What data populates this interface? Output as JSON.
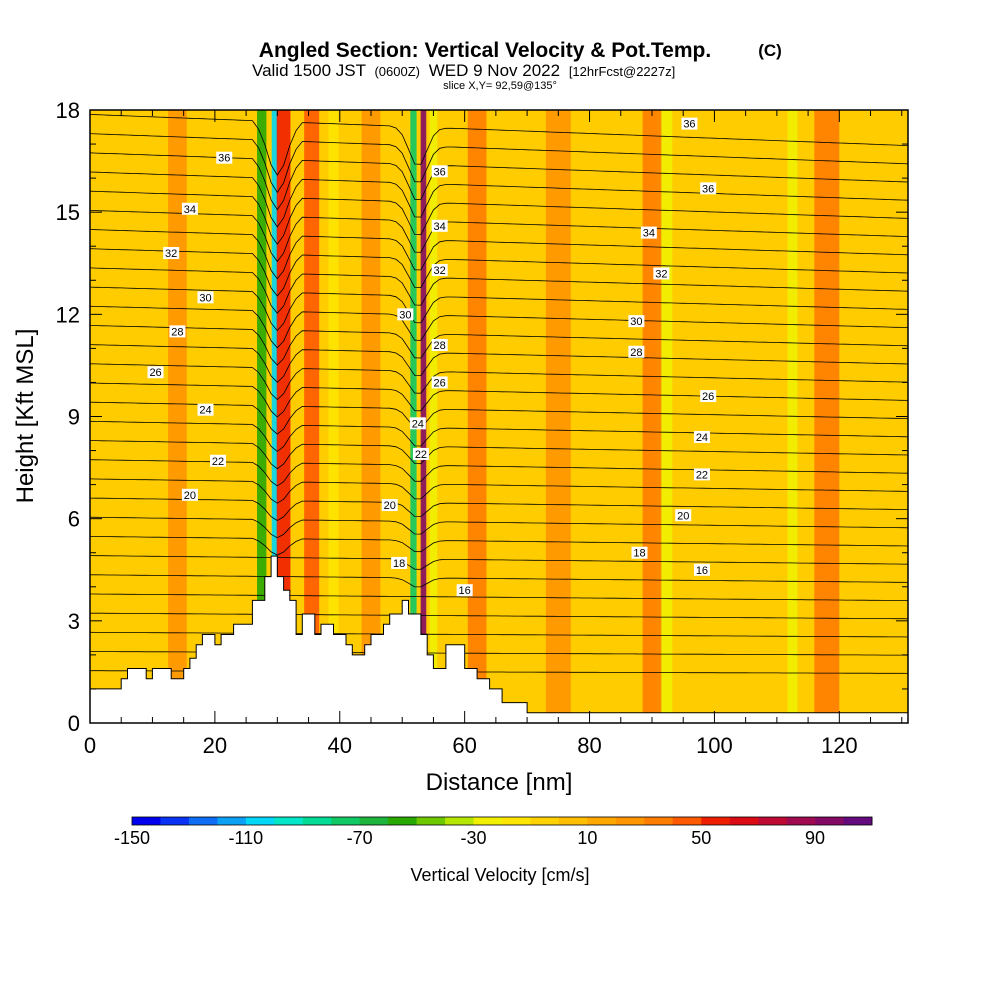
{
  "header": {
    "title": "Angled Section: Vertical Velocity & Pot.Temp.",
    "copyright": "(C)",
    "valid_prefix": "Valid 1500 JST",
    "valid_utc": "(0600Z)",
    "valid_date": "WED 9 Nov 2022",
    "forecast": "[12hrFcst@2227z]",
    "slice": "slice X,Y= 92,59@135°"
  },
  "chart_data": {
    "type": "heatmap",
    "title": "Angled Section: Vertical Velocity & Pot.Temp.",
    "xlabel": "Distance [nm]",
    "ylabel": "Height [Kft MSL]",
    "xlim": [
      0,
      131
    ],
    "ylim": [
      0,
      18
    ],
    "xticks": [
      0,
      20,
      40,
      60,
      80,
      100,
      120
    ],
    "yticks": [
      0,
      3,
      6,
      9,
      12,
      15,
      18
    ],
    "colorbar": {
      "label": "Vertical Velocity [cm/s]",
      "min": -150,
      "max": 110,
      "step": 10,
      "tick_values": [
        -150,
        -110,
        -70,
        -30,
        10,
        50,
        90
      ],
      "colors": [
        "#0000ee",
        "#0a32f5",
        "#0e6cf5",
        "#0ca0f5",
        "#00d6f5",
        "#00e6c8",
        "#00dc96",
        "#10c864",
        "#1eb43c",
        "#28a800",
        "#6ec800",
        "#b4e600",
        "#f0f000",
        "#ffe600",
        "#ffd200",
        "#ffbe00",
        "#ffa800",
        "#ff9600",
        "#ff7d00",
        "#ff5a00",
        "#f01e00",
        "#dc0a14",
        "#be0a32",
        "#a00a50",
        "#820a64",
        "#640a7d"
      ]
    },
    "velocity_bands": [
      {
        "x": 27.5,
        "w": 1.5,
        "v": -60
      },
      {
        "x": 29.6,
        "w": 1.0,
        "v": -110
      },
      {
        "x": 31.0,
        "w": 2.2,
        "v": 55
      },
      {
        "x": 35.5,
        "w": 2.4,
        "v": 40
      },
      {
        "x": 39.0,
        "w": 1.6,
        "v": -20
      },
      {
        "x": 51.8,
        "w": 1.0,
        "v": -80
      },
      {
        "x": 53.4,
        "w": 0.9,
        "v": 95
      },
      {
        "x": 55.0,
        "w": 1.2,
        "v": -30
      },
      {
        "x": 62.0,
        "w": 3.0,
        "v": 30
      },
      {
        "x": 92.0,
        "w": 2.5,
        "v": -25
      },
      {
        "x": 90.0,
        "w": 3.0,
        "v": 35
      },
      {
        "x": 112.5,
        "w": 1.6,
        "v": -30
      },
      {
        "x": 118.0,
        "w": 4.0,
        "v": 30
      },
      {
        "x": 14.0,
        "w": 3.0,
        "v": 25
      },
      {
        "x": 45.0,
        "w": 3.0,
        "v": 25
      },
      {
        "x": 75.0,
        "w": 4.0,
        "v": 25
      }
    ],
    "terrain": [
      [
        0,
        1
      ],
      [
        5,
        1
      ],
      [
        5,
        1.3
      ],
      [
        6,
        1.3
      ],
      [
        6,
        1.6
      ],
      [
        9,
        1.6
      ],
      [
        9,
        1.3
      ],
      [
        10,
        1.3
      ],
      [
        10,
        1.6
      ],
      [
        13,
        1.6
      ],
      [
        13,
        1.3
      ],
      [
        15,
        1.3
      ],
      [
        15,
        1.6
      ],
      [
        16,
        1.6
      ],
      [
        16,
        1.9
      ],
      [
        17,
        1.9
      ],
      [
        17,
        2.3
      ],
      [
        18,
        2.3
      ],
      [
        18,
        2.6
      ],
      [
        20,
        2.6
      ],
      [
        20,
        2.3
      ],
      [
        21,
        2.3
      ],
      [
        21,
        2.6
      ],
      [
        23,
        2.6
      ],
      [
        23,
        2.9
      ],
      [
        26,
        2.9
      ],
      [
        26,
        3.6
      ],
      [
        28,
        3.6
      ],
      [
        28,
        4.3
      ],
      [
        29,
        4.3
      ],
      [
        29,
        4.9
      ],
      [
        30,
        4.9
      ],
      [
        30,
        4.3
      ],
      [
        31,
        4.3
      ],
      [
        31,
        3.9
      ],
      [
        32,
        3.9
      ],
      [
        32,
        3.6
      ],
      [
        33,
        3.6
      ],
      [
        33,
        2.6
      ],
      [
        34,
        2.6
      ],
      [
        34,
        3.2
      ],
      [
        36,
        3.2
      ],
      [
        36,
        2.6
      ],
      [
        37,
        2.6
      ],
      [
        37,
        2.9
      ],
      [
        39,
        2.9
      ],
      [
        39,
        2.6
      ],
      [
        41,
        2.6
      ],
      [
        41,
        2.3
      ],
      [
        42,
        2.3
      ],
      [
        42,
        2.0
      ],
      [
        44,
        2.0
      ],
      [
        44,
        2.3
      ],
      [
        45,
        2.3
      ],
      [
        45,
        2.6
      ],
      [
        47,
        2.6
      ],
      [
        47,
        2.9
      ],
      [
        48,
        2.9
      ],
      [
        48,
        3.2
      ],
      [
        50,
        3.2
      ],
      [
        50,
        3.6
      ],
      [
        51,
        3.6
      ],
      [
        51,
        3.2
      ],
      [
        53,
        3.2
      ],
      [
        53,
        2.6
      ],
      [
        54,
        2.6
      ],
      [
        54,
        2.0
      ],
      [
        55,
        2.0
      ],
      [
        55,
        1.6
      ],
      [
        57,
        1.6
      ],
      [
        57,
        2.3
      ],
      [
        60,
        2.3
      ],
      [
        60,
        1.6
      ],
      [
        62,
        1.6
      ],
      [
        62,
        1.3
      ],
      [
        64,
        1.3
      ],
      [
        64,
        1.0
      ],
      [
        66,
        1.0
      ],
      [
        66,
        0.6
      ],
      [
        70,
        0.6
      ],
      [
        70,
        0.3
      ],
      [
        131,
        0.3
      ]
    ],
    "theta_labels": [
      {
        "text": "16",
        "x": 60,
        "y": 3.9
      },
      {
        "text": "16",
        "x": 98,
        "y": 4.5
      },
      {
        "text": "18",
        "x": 49.5,
        "y": 4.7
      },
      {
        "text": "18",
        "x": 88,
        "y": 5.0
      },
      {
        "text": "20",
        "x": 16,
        "y": 6.7
      },
      {
        "text": "20",
        "x": 48,
        "y": 6.4
      },
      {
        "text": "20",
        "x": 95,
        "y": 6.1
      },
      {
        "text": "22",
        "x": 20.5,
        "y": 7.7
      },
      {
        "text": "22",
        "x": 53,
        "y": 7.9
      },
      {
        "text": "22",
        "x": 98,
        "y": 7.3
      },
      {
        "text": "24",
        "x": 18.5,
        "y": 9.2
      },
      {
        "text": "24",
        "x": 52.5,
        "y": 8.8
      },
      {
        "text": "24",
        "x": 98,
        "y": 8.4
      },
      {
        "text": "26",
        "x": 10.5,
        "y": 10.3
      },
      {
        "text": "26",
        "x": 56,
        "y": 10.0
      },
      {
        "text": "26",
        "x": 99,
        "y": 9.6
      },
      {
        "text": "28",
        "x": 14,
        "y": 11.5
      },
      {
        "text": "28",
        "x": 56,
        "y": 11.1
      },
      {
        "text": "28",
        "x": 87.5,
        "y": 10.9
      },
      {
        "text": "30",
        "x": 18.5,
        "y": 12.5
      },
      {
        "text": "30",
        "x": 50.5,
        "y": 12.0
      },
      {
        "text": "30",
        "x": 87.5,
        "y": 11.8
      },
      {
        "text": "32",
        "x": 13,
        "y": 13.8
      },
      {
        "text": "32",
        "x": 56,
        "y": 13.3
      },
      {
        "text": "32",
        "x": 91.5,
        "y": 13.2
      },
      {
        "text": "34",
        "x": 16,
        "y": 15.1
      },
      {
        "text": "34",
        "x": 56,
        "y": 14.6
      },
      {
        "text": "34",
        "x": 89.5,
        "y": 14.4
      },
      {
        "text": "36",
        "x": 21.5,
        "y": 16.6
      },
      {
        "text": "36",
        "x": 56,
        "y": 16.2
      },
      {
        "text": "36",
        "x": 99,
        "y": 15.7
      },
      {
        "text": "36",
        "x": 96,
        "y": 17.6
      }
    ]
  }
}
